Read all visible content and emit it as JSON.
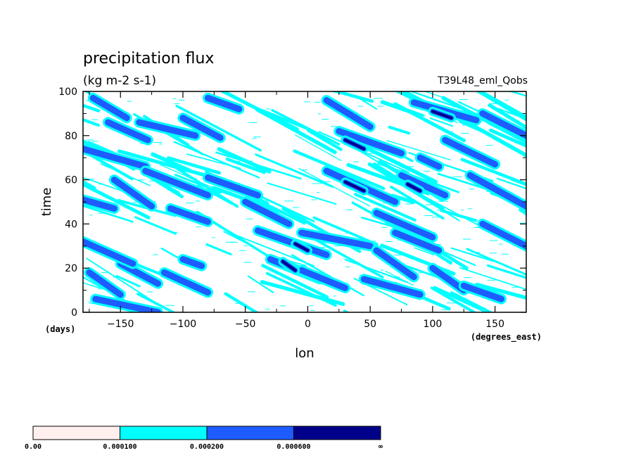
{
  "chart_data": {
    "type": "heatmap",
    "title": "precipitation flux",
    "subtitle": "(kg m-2 s-1)",
    "run_label": "T39L48_eml_Qobs",
    "xlabel": "lon",
    "ylabel": "time",
    "x_units": "(degrees_east)",
    "y_units": "(days)",
    "xlim": [
      -180,
      175
    ],
    "ylim": [
      0,
      100
    ],
    "x_ticks": [
      -150,
      -100,
      -50,
      0,
      50,
      100,
      150
    ],
    "x_tick_labels": [
      "−150",
      "−100",
      "−50",
      "0",
      "50",
      "100",
      "150"
    ],
    "y_ticks": [
      0,
      20,
      40,
      60,
      80,
      100
    ],
    "y_tick_labels": [
      "0",
      "20",
      "40",
      "60",
      "80",
      "100"
    ],
    "grid": false,
    "legend_position": "bottom",
    "levels": [
      {
        "label": "0.00",
        "color": "#fff0ee"
      },
      {
        "label": "0.000100",
        "color": "#00ffff"
      },
      {
        "label": "0.000200",
        "color": "#1e5cff"
      },
      {
        "label": "0.000600",
        "color": "#00008b"
      },
      {
        "label": "∞",
        "color": null
      }
    ],
    "streaks": [
      {
        "lon0": -172,
        "t0": 97,
        "lon1": -145,
        "t1": 88,
        "level": 2
      },
      {
        "lon0": -160,
        "t0": 86,
        "lon1": -128,
        "t1": 78,
        "level": 2
      },
      {
        "lon0": -135,
        "t0": 86,
        "lon1": -90,
        "t1": 80,
        "level": 2
      },
      {
        "lon0": -100,
        "t0": 88,
        "lon1": -70,
        "t1": 79,
        "level": 2
      },
      {
        "lon0": -80,
        "t0": 97,
        "lon1": -55,
        "t1": 92,
        "level": 2
      },
      {
        "lon0": -180,
        "t0": 74,
        "lon1": -130,
        "t1": 66,
        "level": 2
      },
      {
        "lon0": -155,
        "t0": 60,
        "lon1": -125,
        "t1": 48,
        "level": 2
      },
      {
        "lon0": -180,
        "t0": 51,
        "lon1": -155,
        "t1": 47,
        "level": 2
      },
      {
        "lon0": -130,
        "t0": 64,
        "lon1": -80,
        "t1": 53,
        "level": 2
      },
      {
        "lon0": -80,
        "t0": 61,
        "lon1": -40,
        "t1": 53,
        "level": 2
      },
      {
        "lon0": -110,
        "t0": 47,
        "lon1": -80,
        "t1": 41,
        "level": 2
      },
      {
        "lon0": -50,
        "t0": 50,
        "lon1": -15,
        "t1": 40,
        "level": 2
      },
      {
        "lon0": -40,
        "t0": 37,
        "lon1": 15,
        "t1": 26,
        "level": 2
      },
      {
        "lon0": -30,
        "t0": 24,
        "lon1": 10,
        "t1": 15,
        "level": 2
      },
      {
        "lon0": -100,
        "t0": 24,
        "lon1": -85,
        "t1": 21,
        "level": 2
      },
      {
        "lon0": -150,
        "t0": 22,
        "lon1": -120,
        "t1": 13,
        "level": 2
      },
      {
        "lon0": -175,
        "t0": 18,
        "lon1": -150,
        "t1": 8,
        "level": 2
      },
      {
        "lon0": -115,
        "t0": 18,
        "lon1": -80,
        "t1": 9,
        "level": 2
      },
      {
        "lon0": -5,
        "t0": 36,
        "lon1": 50,
        "t1": 30,
        "level": 2
      },
      {
        "lon0": -180,
        "t0": 32,
        "lon1": -140,
        "t1": 22,
        "level": 2
      },
      {
        "lon0": -170,
        "t0": 6,
        "lon1": -120,
        "t1": 0,
        "level": 2
      },
      {
        "lon0": 15,
        "t0": 96,
        "lon1": 50,
        "t1": 84,
        "level": 2
      },
      {
        "lon0": 25,
        "t0": 82,
        "lon1": 75,
        "t1": 72,
        "level": 2
      },
      {
        "lon0": 15,
        "t0": 64,
        "lon1": 70,
        "t1": 50,
        "level": 2
      },
      {
        "lon0": 55,
        "t0": 45,
        "lon1": 100,
        "t1": 34,
        "level": 2
      },
      {
        "lon0": 75,
        "t0": 62,
        "lon1": 110,
        "t1": 53,
        "level": 2
      },
      {
        "lon0": 85,
        "t0": 95,
        "lon1": 135,
        "t1": 87,
        "level": 2
      },
      {
        "lon0": 140,
        "t0": 90,
        "lon1": 175,
        "t1": 80,
        "level": 2
      },
      {
        "lon0": 110,
        "t0": 78,
        "lon1": 150,
        "t1": 67,
        "level": 2
      },
      {
        "lon0": 90,
        "t0": 70,
        "lon1": 105,
        "t1": 66,
        "level": 2
      },
      {
        "lon0": 130,
        "t0": 62,
        "lon1": 175,
        "t1": 48,
        "level": 2
      },
      {
        "lon0": 140,
        "t0": 40,
        "lon1": 175,
        "t1": 30,
        "level": 2
      },
      {
        "lon0": 55,
        "t0": 28,
        "lon1": 85,
        "t1": 16,
        "level": 2
      },
      {
        "lon0": 45,
        "t0": 15,
        "lon1": 90,
        "t1": 8,
        "level": 2
      },
      {
        "lon0": 100,
        "t0": 20,
        "lon1": 125,
        "t1": 10,
        "level": 2
      },
      {
        "lon0": 125,
        "t0": 12,
        "lon1": 155,
        "t1": 6,
        "level": 2
      },
      {
        "lon0": -5,
        "t0": 19,
        "lon1": 30,
        "t1": 11,
        "level": 2
      },
      {
        "lon0": 70,
        "t0": 36,
        "lon1": 105,
        "t1": 28,
        "level": 2
      },
      {
        "lon0": -20,
        "t0": 23,
        "lon1": -10,
        "t1": 19,
        "level": 3
      },
      {
        "lon0": 30,
        "t0": 78,
        "lon1": 45,
        "t1": 74,
        "level": 3
      },
      {
        "lon0": 30,
        "t0": 59,
        "lon1": 45,
        "t1": 55,
        "level": 3
      },
      {
        "lon0": 100,
        "t0": 91,
        "lon1": 115,
        "t1": 88,
        "level": 3
      },
      {
        "lon0": 80,
        "t0": 58,
        "lon1": 90,
        "t1": 55,
        "level": 3
      },
      {
        "lon0": -10,
        "t0": 31,
        "lon1": 0,
        "t1": 28,
        "level": 3
      }
    ]
  }
}
